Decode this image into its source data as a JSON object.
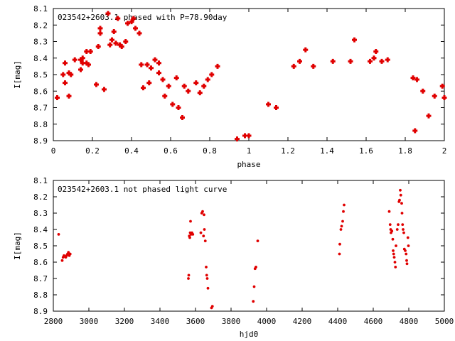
{
  "chart_data": [
    {
      "type": "scatter",
      "title": "023542+2603.1 phased with P=78.90day",
      "xlabel": "phase",
      "ylabel": "I[mag]",
      "xlim": [
        0,
        2
      ],
      "ylim": [
        8.9,
        8.1
      ],
      "y_inverted": true,
      "grid": false,
      "marker": "cross",
      "x_ticks": [
        "0",
        "0.2",
        "0.4",
        "0.6",
        "0.8",
        "1",
        "1.2",
        "1.4",
        "1.6",
        "1.8",
        "2"
      ],
      "y_ticks": [
        "8.1",
        "8.2",
        "8.3",
        "8.4",
        "8.5",
        "8.6",
        "8.7",
        "8.8",
        "8.9"
      ],
      "color": "#e00000",
      "points": [
        [
          0.02,
          8.64
        ],
        [
          0.05,
          8.5
        ],
        [
          0.06,
          8.55
        ],
        [
          0.06,
          8.43
        ],
        [
          0.08,
          8.63
        ],
        [
          0.08,
          8.49
        ],
        [
          0.09,
          8.5
        ],
        [
          0.11,
          8.41
        ],
        [
          0.14,
          8.41
        ],
        [
          0.14,
          8.47
        ],
        [
          0.15,
          8.4
        ],
        [
          0.15,
          8.43
        ],
        [
          0.17,
          8.36
        ],
        [
          0.17,
          8.43
        ],
        [
          0.18,
          8.44
        ],
        [
          0.19,
          8.36
        ],
        [
          0.22,
          8.56
        ],
        [
          0.23,
          8.33
        ],
        [
          0.24,
          8.22
        ],
        [
          0.24,
          8.25
        ],
        [
          0.26,
          8.59
        ],
        [
          0.28,
          8.13
        ],
        [
          0.29,
          8.32
        ],
        [
          0.3,
          8.29
        ],
        [
          0.31,
          8.24
        ],
        [
          0.32,
          8.31
        ],
        [
          0.33,
          8.16
        ],
        [
          0.34,
          8.32
        ],
        [
          0.35,
          8.33
        ],
        [
          0.37,
          8.3
        ],
        [
          0.38,
          8.19
        ],
        [
          0.4,
          8.18
        ],
        [
          0.41,
          8.16
        ],
        [
          0.42,
          8.22
        ],
        [
          0.44,
          8.25
        ],
        [
          0.45,
          8.44
        ],
        [
          0.46,
          8.58
        ],
        [
          0.48,
          8.44
        ],
        [
          0.49,
          8.55
        ],
        [
          0.5,
          8.46
        ],
        [
          0.52,
          8.41
        ],
        [
          0.54,
          8.43
        ],
        [
          0.54,
          8.49
        ],
        [
          0.56,
          8.53
        ],
        [
          0.57,
          8.63
        ],
        [
          0.59,
          8.57
        ],
        [
          0.61,
          8.68
        ],
        [
          0.63,
          8.52
        ],
        [
          0.64,
          8.7
        ],
        [
          0.66,
          8.76
        ],
        [
          0.67,
          8.57
        ],
        [
          0.69,
          8.6
        ],
        [
          0.73,
          8.55
        ],
        [
          0.75,
          8.61
        ],
        [
          0.77,
          8.57
        ],
        [
          0.79,
          8.53
        ],
        [
          0.81,
          8.5
        ],
        [
          0.84,
          8.45
        ],
        [
          0.94,
          8.89
        ],
        [
          0.98,
          8.87
        ],
        [
          1.0,
          8.87
        ],
        [
          1.1,
          8.68
        ],
        [
          1.14,
          8.7
        ],
        [
          1.23,
          8.45
        ],
        [
          1.26,
          8.42
        ],
        [
          1.29,
          8.35
        ],
        [
          1.33,
          8.45
        ],
        [
          1.43,
          8.42
        ],
        [
          1.52,
          8.42
        ],
        [
          1.54,
          8.29
        ],
        [
          1.62,
          8.42
        ],
        [
          1.64,
          8.4
        ],
        [
          1.65,
          8.36
        ],
        [
          1.68,
          8.42
        ],
        [
          1.71,
          8.41
        ],
        [
          1.84,
          8.52
        ],
        [
          1.85,
          8.84
        ],
        [
          1.86,
          8.53
        ],
        [
          1.89,
          8.6
        ],
        [
          1.92,
          8.75
        ],
        [
          1.95,
          8.63
        ],
        [
          1.99,
          8.57
        ],
        [
          2.0,
          8.64
        ]
      ]
    },
    {
      "type": "scatter",
      "title": "023542+2603.1 not phased light curve",
      "xlabel": "hjd0",
      "ylabel": "I[mag]",
      "xlim": [
        2800,
        5000
      ],
      "ylim": [
        8.9,
        8.1
      ],
      "y_inverted": true,
      "grid": false,
      "marker": "dot",
      "x_ticks": [
        "2800",
        "3000",
        "3200",
        "3400",
        "3600",
        "3800",
        "4000",
        "4200",
        "4400",
        "4600",
        "4800",
        "5000"
      ],
      "y_ticks": [
        "8.1",
        "8.2",
        "8.3",
        "8.4",
        "8.5",
        "8.6",
        "8.7",
        "8.8",
        "8.9"
      ],
      "color": "#e00000",
      "points": [
        [
          2830,
          8.43
        ],
        [
          2850,
          8.59
        ],
        [
          2855,
          8.57
        ],
        [
          2860,
          8.56
        ],
        [
          2870,
          8.57
        ],
        [
          2875,
          8.56
        ],
        [
          2880,
          8.55
        ],
        [
          2885,
          8.54
        ],
        [
          2890,
          8.56
        ],
        [
          2895,
          8.55
        ],
        [
          3560,
          8.7
        ],
        [
          3562,
          8.68
        ],
        [
          3565,
          8.44
        ],
        [
          3568,
          8.45
        ],
        [
          3570,
          8.42
        ],
        [
          3572,
          8.35
        ],
        [
          3575,
          8.43
        ],
        [
          3580,
          8.42
        ],
        [
          3585,
          8.43
        ],
        [
          3630,
          8.42
        ],
        [
          3635,
          8.3
        ],
        [
          3640,
          8.29
        ],
        [
          3645,
          8.44
        ],
        [
          3648,
          8.31
        ],
        [
          3650,
          8.4
        ],
        [
          3655,
          8.47
        ],
        [
          3660,
          8.63
        ],
        [
          3663,
          8.68
        ],
        [
          3666,
          8.7
        ],
        [
          3670,
          8.76
        ],
        [
          3690,
          8.88
        ],
        [
          3695,
          8.87
        ],
        [
          3925,
          8.84
        ],
        [
          3930,
          8.75
        ],
        [
          3935,
          8.64
        ],
        [
          3940,
          8.63
        ],
        [
          3950,
          8.47
        ],
        [
          4410,
          8.55
        ],
        [
          4412,
          8.49
        ],
        [
          4418,
          8.4
        ],
        [
          4422,
          8.38
        ],
        [
          4428,
          8.35
        ],
        [
          4432,
          8.29
        ],
        [
          4436,
          8.25
        ],
        [
          4690,
          8.29
        ],
        [
          4695,
          8.37
        ],
        [
          4698,
          8.4
        ],
        [
          4700,
          8.42
        ],
        [
          4705,
          8.41
        ],
        [
          4710,
          8.46
        ],
        [
          4712,
          8.53
        ],
        [
          4715,
          8.55
        ],
        [
          4718,
          8.57
        ],
        [
          4722,
          8.6
        ],
        [
          4725,
          8.63
        ],
        [
          4728,
          8.5
        ],
        [
          4735,
          8.4
        ],
        [
          4740,
          8.37
        ],
        [
          4745,
          8.23
        ],
        [
          4748,
          8.22
        ],
        [
          4752,
          8.16
        ],
        [
          4755,
          8.19
        ],
        [
          4760,
          8.24
        ],
        [
          4762,
          8.3
        ],
        [
          4765,
          8.37
        ],
        [
          4768,
          8.4
        ],
        [
          4772,
          8.42
        ],
        [
          4775,
          8.52
        ],
        [
          4780,
          8.53
        ],
        [
          4785,
          8.55
        ],
        [
          4788,
          8.59
        ],
        [
          4790,
          8.61
        ],
        [
          4795,
          8.45
        ],
        [
          4798,
          8.5
        ]
      ]
    }
  ]
}
